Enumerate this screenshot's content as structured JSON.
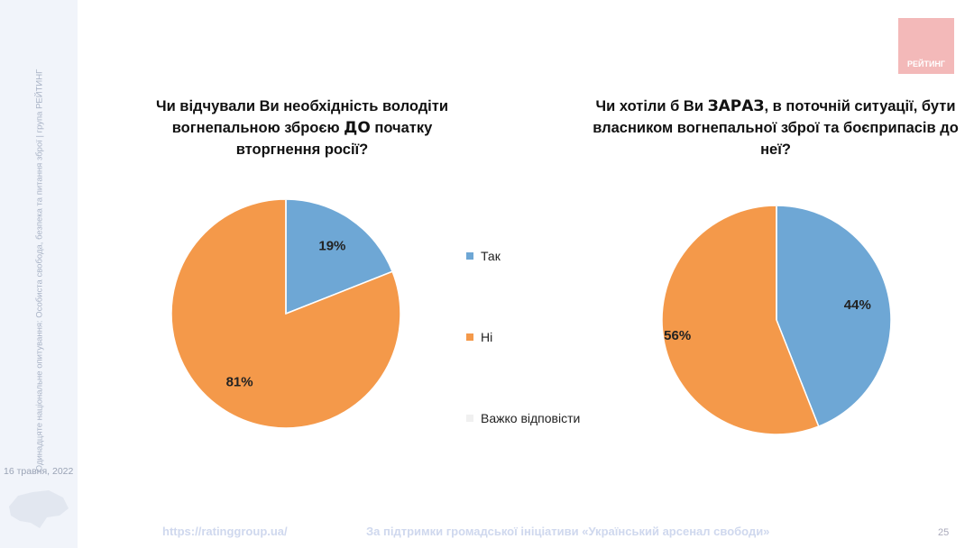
{
  "sidebar": {
    "vertical_text": "Одинадцяте національне опитування: Особиста свобода, безпека та питання зброї | група РЕЙТИНГ",
    "date": "16 травня, 2022"
  },
  "logo": {
    "text": "РЕЙТИНГ"
  },
  "footer": {
    "url": "https://ratinggroup.ua/",
    "support": "За підтримки  громадської ініціативи «Український арсенал свободи»",
    "page": "25"
  },
  "chart_data": [
    {
      "type": "pie",
      "title_parts": [
        "Чи відчували Ви необхідність володіти вогнепальною зброєю ",
        "ДО",
        " початку вторгнення росії?"
      ],
      "categories": [
        "Так",
        "Ні",
        "Важко відповісти"
      ],
      "values": [
        19,
        81,
        0
      ],
      "labels": [
        "19%",
        "81%",
        ""
      ]
    },
    {
      "type": "pie",
      "title_parts": [
        "Чи хотіли б Ви ",
        "ЗАРАЗ",
        ", в поточній ситуації, бути власником вогнепальної зброї та боєприпасів до неї?"
      ],
      "categories": [
        "Так",
        "Ні",
        "Важко відповісти"
      ],
      "values": [
        44,
        56,
        0
      ],
      "labels": [
        "44%",
        "56%",
        ""
      ]
    }
  ],
  "legend": {
    "items": [
      "Так",
      "Ні",
      "Важко відповісти"
    ],
    "colors": [
      "#6ea7d5",
      "#f4994a",
      "#f0f0f0"
    ],
    "placement": "center"
  }
}
